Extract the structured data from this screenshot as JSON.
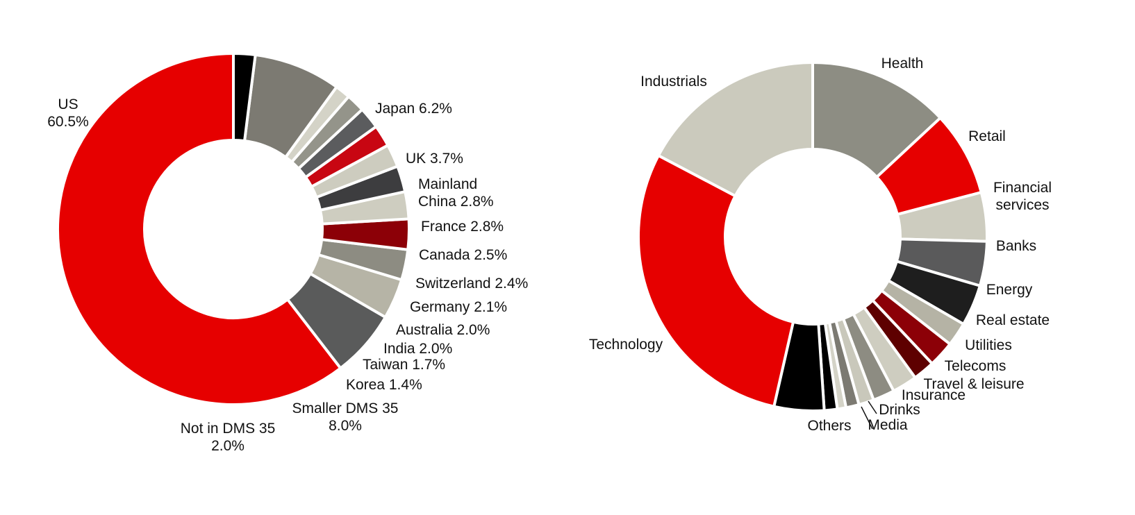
{
  "chart_data": [
    {
      "type": "donut",
      "segments": [
        {
          "name": "US",
          "value": 60.5,
          "label_lines": [
            "US",
            "60.5%"
          ],
          "color": "#e60000"
        },
        {
          "name": "Japan",
          "value": 6.2,
          "label_lines": [
            "Japan 6.2%"
          ],
          "color": "#5a5b5b"
        },
        {
          "name": "UK",
          "value": 3.7,
          "label_lines": [
            "UK 3.7%"
          ],
          "color": "#b6b4a6"
        },
        {
          "name": "Mainland China",
          "value": 2.8,
          "label_lines": [
            "Mainland",
            "China 2.8%"
          ],
          "color": "#8d8c82"
        },
        {
          "name": "France",
          "value": 2.8,
          "label_lines": [
            "France 2.8%"
          ],
          "color": "#8c0007"
        },
        {
          "name": "Canada",
          "value": 2.5,
          "label_lines": [
            "Canada 2.5%"
          ],
          "color": "#cecdc0"
        },
        {
          "name": "Switzerland",
          "value": 2.4,
          "label_lines": [
            "Switzerland 2.4%"
          ],
          "color": "#3d3d3f"
        },
        {
          "name": "Germany",
          "value": 2.1,
          "label_lines": [
            "Germany 2.1%"
          ],
          "color": "#cdccbf"
        },
        {
          "name": "Australia",
          "value": 2.0,
          "label_lines": [
            "Australia 2.0%"
          ],
          "color": "#c80612"
        },
        {
          "name": "India",
          "value": 2.0,
          "label_lines": [
            "India 2.0%"
          ],
          "color": "#5b5c5e"
        },
        {
          "name": "Taiwan",
          "value": 1.7,
          "label_lines": [
            "Taiwan 1.7%"
          ],
          "color": "#94948a"
        },
        {
          "name": "Korea",
          "value": 1.4,
          "label_lines": [
            "Korea 1.4%"
          ],
          "color": "#d4d3c7"
        },
        {
          "name": "Smaller DMS 35",
          "value": 8.0,
          "label_lines": [
            "Smaller DMS 35",
            "8.0%"
          ],
          "color": "#7c7a72"
        },
        {
          "name": "Not in DMS 35",
          "value": 2.0,
          "label_lines": [
            "Not in DMS 35",
            "2.0%"
          ],
          "color": "#000000"
        }
      ]
    },
    {
      "type": "donut",
      "segments": [
        {
          "name": "Health",
          "value": 13.0,
          "label_lines": [
            "Health"
          ],
          "color": "#8d8d83"
        },
        {
          "name": "Retail",
          "value": 7.8,
          "label_lines": [
            "Retail"
          ],
          "color": "#e60000"
        },
        {
          "name": "Financial services",
          "value": 4.5,
          "label_lines": [
            "Financial",
            "services"
          ],
          "color": "#cdccbf"
        },
        {
          "name": "Banks",
          "value": 4.1,
          "label_lines": [
            "Banks"
          ],
          "color": "#5a5a5b"
        },
        {
          "name": "Energy",
          "value": 3.8,
          "label_lines": [
            "Energy"
          ],
          "color": "#1e1e1e"
        },
        {
          "name": "Real estate",
          "value": 2.2,
          "label_lines": [
            "Real estate"
          ],
          "color": "#b5b3a5"
        },
        {
          "name": "Utilities",
          "value": 2.4,
          "label_lines": [
            "Utilities"
          ],
          "color": "#8c0007"
        },
        {
          "name": "Telecoms",
          "value": 2.0,
          "label_lines": [
            "Telecoms"
          ],
          "color": "#5e0000"
        },
        {
          "name": "Travel & leisure",
          "value": 2.3,
          "label_lines": [
            "Travel & leisure"
          ],
          "color": "#cecdc0"
        },
        {
          "name": "Insurance",
          "value": 2.0,
          "label_lines": [
            "Insurance"
          ],
          "color": "#8d8c82"
        },
        {
          "name": "Drinks",
          "value": 1.4,
          "label_lines": [
            "Drinks"
          ],
          "color": "#c9c8bb"
        },
        {
          "name": "",
          "value": 1.2,
          "label_lines": [],
          "color": "#7c7a72"
        },
        {
          "name": "",
          "value": 0.8,
          "label_lines": [],
          "color": "#d4d3c7"
        },
        {
          "name": "Media",
          "value": 1.2,
          "label_lines": [
            "Media"
          ],
          "color": "#000000"
        },
        {
          "name": "Others",
          "value": 4.6,
          "label_lines": [
            "Others"
          ],
          "color": "#000000"
        },
        {
          "name": "Technology",
          "value": 29.0,
          "label_lines": [
            "Technology"
          ],
          "color": "#e60000"
        },
        {
          "name": "Industrials",
          "value": 17.2,
          "label_lines": [
            "Industrials"
          ],
          "color": "#cbcabd"
        }
      ]
    }
  ]
}
